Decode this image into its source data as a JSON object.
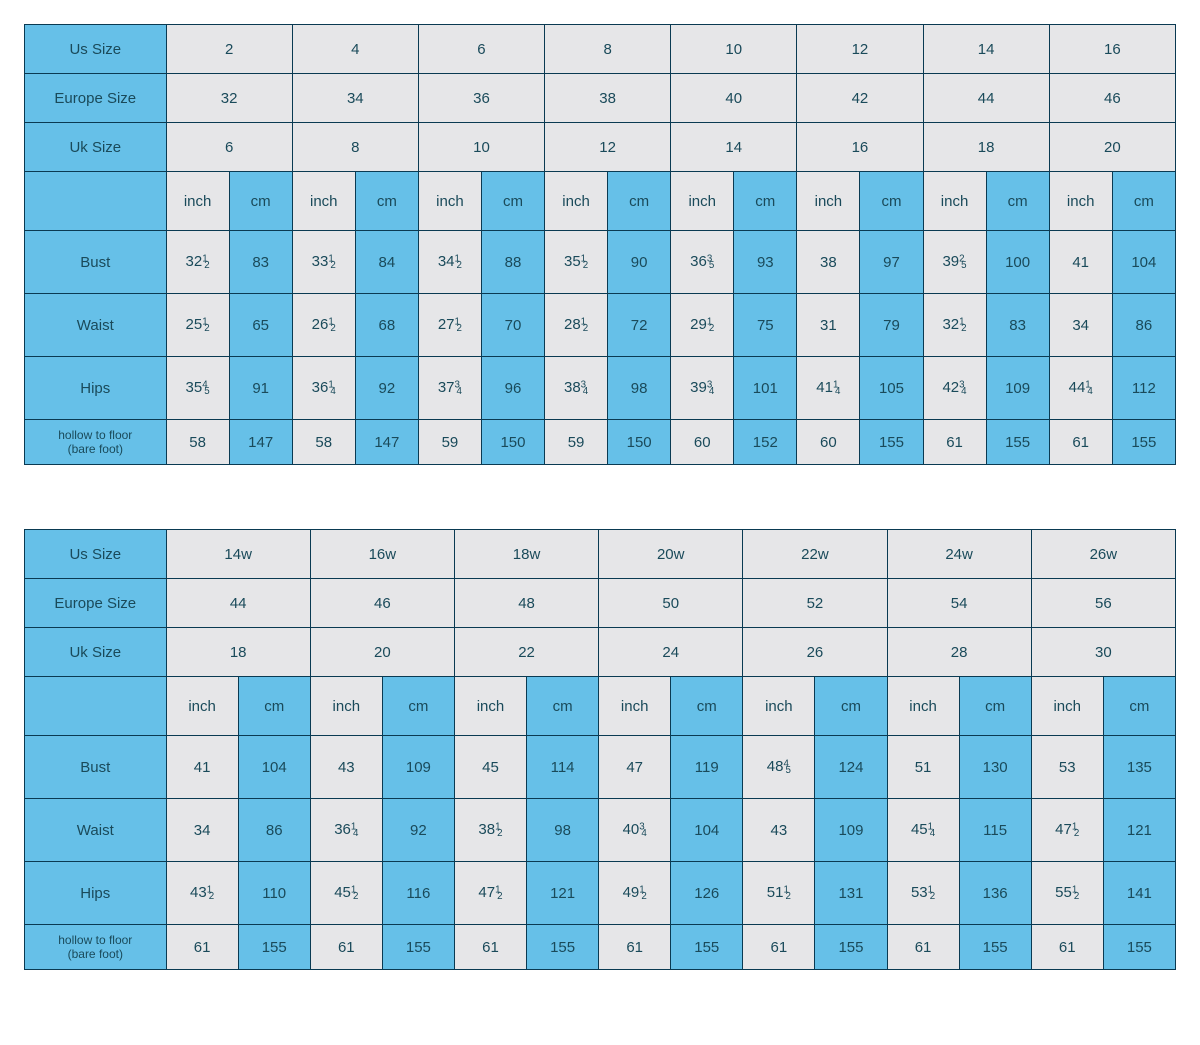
{
  "colors": {
    "header_bg": "#66c0e8",
    "data_bg": "#e6e6e8",
    "border": "#0a3a52",
    "text": "#1a4a5a",
    "page_bg": "#ffffff"
  },
  "typography": {
    "font_family": "Verdana, Geneva, sans-serif",
    "base_fontsize_pt": 11,
    "small_fontsize_pt": 9
  },
  "labels": {
    "us_size": "Us Size",
    "europe_size": "Europe Size",
    "uk_size": "Uk Size",
    "inch": "inch",
    "cm": "cm",
    "bust": "Bust",
    "waist": "Waist",
    "hips": "Hips",
    "hollow_to_floor_1": "hollow to floor",
    "hollow_to_floor_2": "(bare foot)"
  },
  "tables": [
    {
      "id": "standard",
      "size_columns": 8,
      "sizes": {
        "us": [
          "2",
          "4",
          "6",
          "8",
          "10",
          "12",
          "14",
          "16"
        ],
        "europe": [
          "32",
          "34",
          "36",
          "38",
          "40",
          "42",
          "44",
          "46"
        ],
        "uk": [
          "6",
          "8",
          "10",
          "12",
          "14",
          "16",
          "18",
          "20"
        ]
      },
      "measurements": [
        {
          "name": "bust",
          "inch": [
            "32½",
            "33½",
            "34½",
            "35½",
            "36⅗",
            "38",
            "39⅖",
            "41"
          ],
          "cm": [
            "83",
            "84",
            "88",
            "90",
            "93",
            "97",
            "100",
            "104"
          ]
        },
        {
          "name": "waist",
          "inch": [
            "25½",
            "26½",
            "27½",
            "28½",
            "29½",
            "31",
            "32½",
            "34"
          ],
          "cm": [
            "65",
            "68",
            "70",
            "72",
            "75",
            "79",
            "83",
            "86"
          ]
        },
        {
          "name": "hips",
          "inch": [
            "35⅘",
            "36¼",
            "37¾",
            "38¾",
            "39¾",
            "41¼",
            "42¾",
            "44¼"
          ],
          "cm": [
            "91",
            "92",
            "96",
            "98",
            "101",
            "105",
            "109",
            "112"
          ]
        },
        {
          "name": "hollow",
          "inch": [
            "58",
            "58",
            "59",
            "59",
            "60",
            "60",
            "61",
            "61"
          ],
          "cm": [
            "147",
            "147",
            "150",
            "150",
            "152",
            "155",
            "155",
            "155"
          ]
        }
      ]
    },
    {
      "id": "plus",
      "size_columns": 7,
      "sizes": {
        "us": [
          "14w",
          "16w",
          "18w",
          "20w",
          "22w",
          "24w",
          "26w"
        ],
        "europe": [
          "44",
          "46",
          "48",
          "50",
          "52",
          "54",
          "56"
        ],
        "uk": [
          "18",
          "20",
          "22",
          "24",
          "26",
          "28",
          "30"
        ]
      },
      "measurements": [
        {
          "name": "bust",
          "inch": [
            "41",
            "43",
            "45",
            "47",
            "48⅘",
            "51",
            "53"
          ],
          "cm": [
            "104",
            "109",
            "114",
            "119",
            "124",
            "130",
            "135"
          ]
        },
        {
          "name": "waist",
          "inch": [
            "34",
            "36¼",
            "38½",
            "40¾",
            "43",
            "45¼",
            "47½"
          ],
          "cm": [
            "86",
            "92",
            "98",
            "104",
            "109",
            "115",
            "121"
          ]
        },
        {
          "name": "hips",
          "inch": [
            "43½",
            "45½",
            "47½",
            "49½",
            "51½",
            "53½",
            "55½"
          ],
          "cm": [
            "110",
            "116",
            "121",
            "126",
            "131",
            "136",
            "141"
          ]
        },
        {
          "name": "hollow",
          "inch": [
            "61",
            "61",
            "61",
            "61",
            "61",
            "61",
            "61"
          ],
          "cm": [
            "155",
            "155",
            "155",
            "155",
            "155",
            "155",
            "155"
          ]
        }
      ]
    }
  ]
}
